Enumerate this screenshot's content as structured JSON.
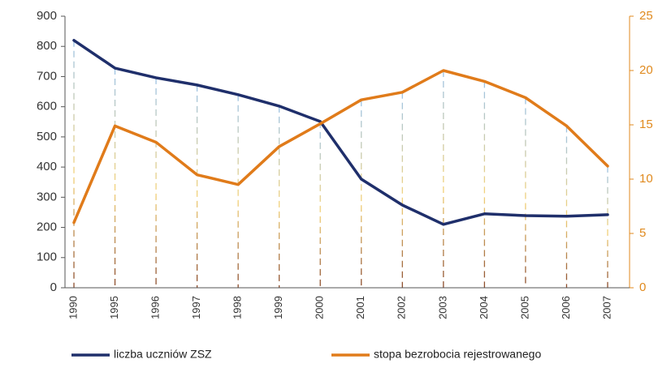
{
  "chart_data": {
    "type": "line",
    "categories": [
      "1990",
      "1995",
      "1996",
      "1997",
      "1998",
      "1999",
      "2000",
      "2001",
      "2002",
      "2003",
      "2004",
      "2005",
      "2006",
      "2007"
    ],
    "series": [
      {
        "name": "liczba uczniów ZSZ",
        "color": "#1f2f6b",
        "values": [
          820,
          728,
          696,
          672,
          640,
          602,
          551,
          360,
          274,
          210,
          245,
          239,
          237,
          242
        ]
      },
      {
        "name": "stopa bezrobocia rejestrowanego",
        "color": "#e07b1a",
        "axis": "y2",
        "values": [
          6.0,
          14.9,
          13.4,
          10.4,
          9.5,
          13.0,
          15.1,
          17.3,
          18.0,
          20.0,
          19.0,
          17.5,
          14.9,
          11.2
        ]
      }
    ],
    "ylim": [
      0,
      900
    ],
    "yticks": [
      0,
      100,
      200,
      300,
      400,
      500,
      600,
      700,
      800,
      900
    ],
    "y2lim": [
      0,
      25
    ],
    "y2ticks": [
      0,
      5,
      10,
      15,
      20,
      25
    ]
  }
}
